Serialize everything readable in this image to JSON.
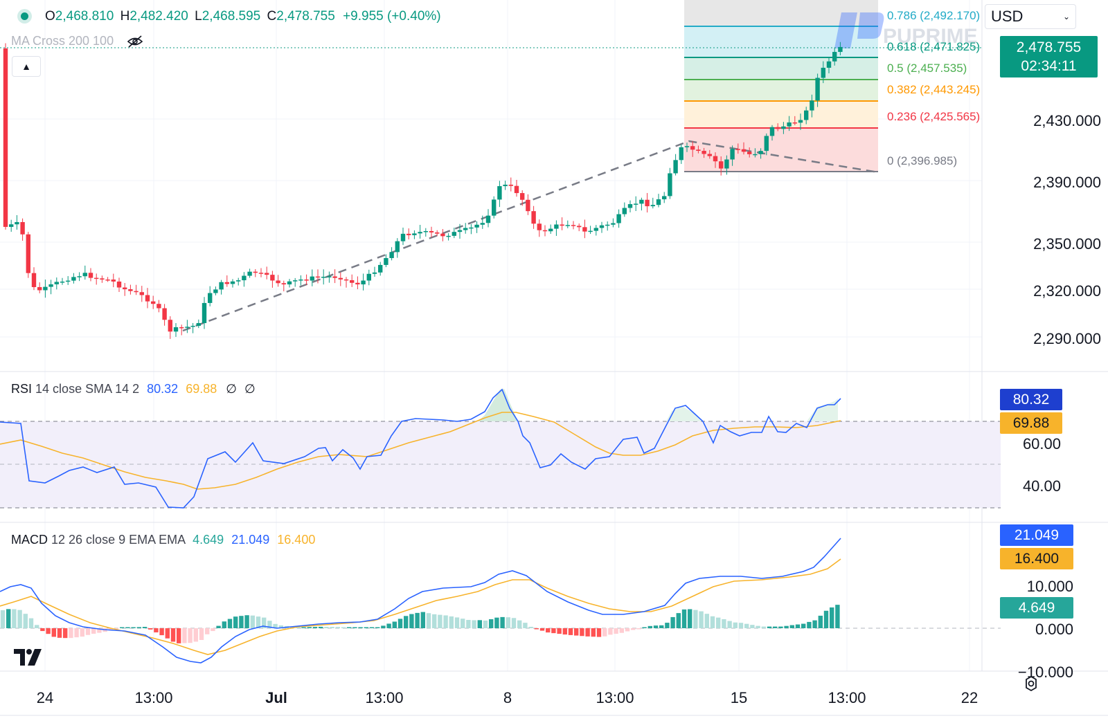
{
  "header": {
    "open_label": "O",
    "open": "2,468.810",
    "high_label": "H",
    "high": "2,482.420",
    "low_label": "L",
    "low": "2,468.595",
    "close_label": "C",
    "close": "2,478.755",
    "change": "+9.955 (+0.40%)"
  },
  "indicator_ma": {
    "label": "MA Cross 200 100"
  },
  "currency": {
    "selected": "USD"
  },
  "watermark": "PUPRIME",
  "price_axis": {
    "ticks": [
      "2,430.000",
      "2,390.000",
      "2,350.000",
      "2,320.000",
      "2,290.000"
    ],
    "current_price": "2,478.755",
    "countdown": "02:34:11"
  },
  "fib_levels": [
    {
      "label": "0.786 (2,492.170)",
      "color": "#22abc7"
    },
    {
      "label": "0.618 (2,471.825)",
      "color": "#089981"
    },
    {
      "label": "0.5 (2,457.535)",
      "color": "#4caf50"
    },
    {
      "label": "0.382 (2,443.245)",
      "color": "#ff9800"
    },
    {
      "label": "0.236 (2,425.565)",
      "color": "#f23645"
    },
    {
      "label": "0 (2,396.985)",
      "color": "#787b86"
    }
  ],
  "rsi": {
    "name": "RSI",
    "params": "14 close SMA 14 2",
    "rsi_value": "80.32",
    "sma_value": "69.88",
    "ticks": [
      "60.00",
      "40.00"
    ],
    "rsi_color": "#2962ff",
    "sma_color": "#f7b32b"
  },
  "macd": {
    "name": "MACD",
    "params": "12 26 close 9 EMA EMA",
    "hist_value": "4.649",
    "macd_value": "21.049",
    "signal_value": "16.400",
    "ticks": [
      "10.000",
      "0.000",
      "−10.000"
    ]
  },
  "time_axis": {
    "labels": [
      "24",
      "13:00",
      "Jul",
      "13:00",
      "8",
      "13:00",
      "15",
      "13:00",
      "22"
    ]
  },
  "colors": {
    "up": "#089981",
    "down": "#f23645",
    "accent": "#2962ff"
  }
}
